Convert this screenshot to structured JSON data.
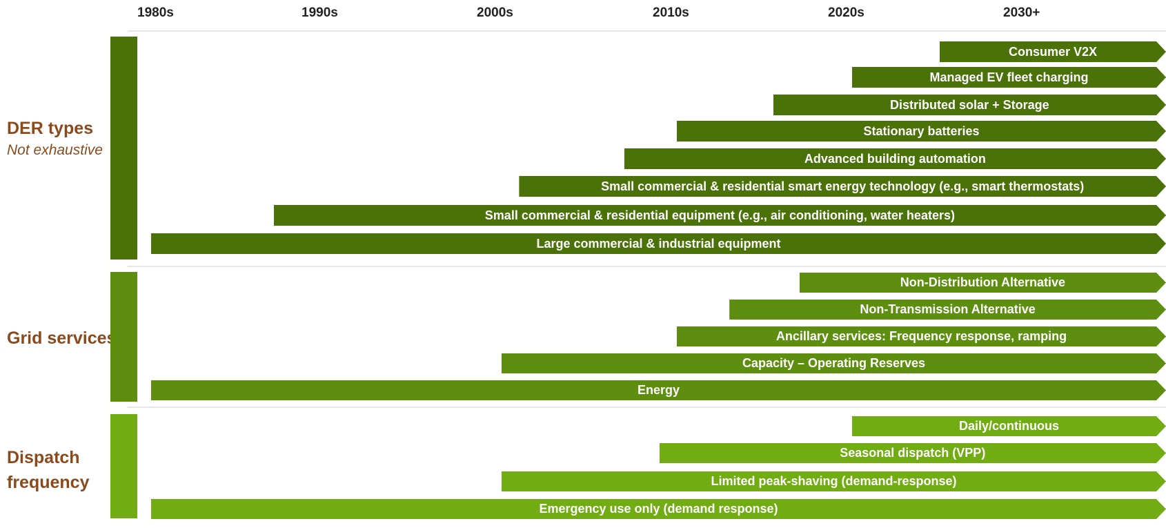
{
  "decades": [
    "1980s",
    "1990s",
    "2000s",
    "2010s",
    "2020s",
    "2030+"
  ],
  "sections": [
    {
      "title": "DER types",
      "subtitle": "Not exhaustive",
      "color": "#4a7209",
      "bars": [
        {
          "label": "Consumer V2X",
          "start": 2025
        },
        {
          "label": "Managed EV fleet charging",
          "start": 2020
        },
        {
          "label": "Distributed solar + Storage",
          "start": 2015.5
        },
        {
          "label": "Stationary batteries",
          "start": 2010
        },
        {
          "label": "Advanced building automation",
          "start": 2007
        },
        {
          "label": "Small commercial & residential smart energy technology (e.g., smart thermostats)",
          "start": 2001
        },
        {
          "label": "Small commercial & residential equipment (e.g., air conditioning, water heaters)",
          "start": 1987
        },
        {
          "label": "Large commercial & industrial equipment",
          "start": 1980
        }
      ]
    },
    {
      "title": "Grid services",
      "subtitle": "",
      "color": "#5e8e10",
      "bars": [
        {
          "label": "Non-Distribution Alternative",
          "start": 2017
        },
        {
          "label": "Non-Transmission Alternative",
          "start": 2013
        },
        {
          "label": "Ancillary services: Frequency response, ramping",
          "start": 2010
        },
        {
          "label": "Capacity – Operating Reserves",
          "start": 2000
        },
        {
          "label": "Energy",
          "start": 1980
        }
      ]
    },
    {
      "title": "Dispatch frequency",
      "subtitle": "",
      "color": "#71ac12",
      "bars": [
        {
          "label": "Daily/continuous",
          "start": 2020
        },
        {
          "label": "Seasonal dispatch (VPP)",
          "start": 2009
        },
        {
          "label": "Limited peak-shaving (demand-response)",
          "start": 2000
        },
        {
          "label": "Emergency use only (demand response)",
          "start": 1980
        }
      ]
    }
  ]
}
